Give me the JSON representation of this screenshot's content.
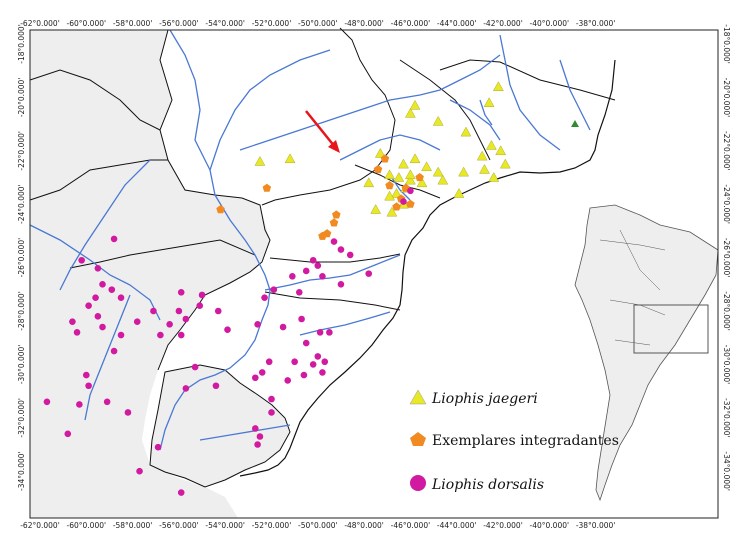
{
  "map": {
    "x_ticks": [
      "-62°0.000'",
      "-60°0.000'",
      "-58°0.000'",
      "-56°0.000'",
      "-54°0.000'",
      "-52°0.000'",
      "-50°0.000'",
      "-48°0.000'",
      "-46°0.000'",
      "-44°0.000'",
      "-42°0.000'",
      "-40°0.000'",
      "-38°0.000'"
    ],
    "y_ticks": [
      "-18°0.000'",
      "-20°0.000'",
      "-22°0.000'",
      "-24°0.000'",
      "-26°0.000'",
      "-28°0.000'",
      "-30°0.000'",
      "-32°0.000'",
      "-34°0.000'"
    ],
    "colors": {
      "land_foreign": "#eeeeee",
      "land_brazil": "#ffffff",
      "ocean": "#ffffff",
      "rivers": "#4a78d4",
      "borders": "#111111",
      "arrow": "#e8141b",
      "jaegeri": "#e8e826",
      "integradantes": "#f08a21",
      "dorsalis": "#d11aa0"
    }
  },
  "legend": {
    "items": [
      {
        "label": "Liophis jaegeri",
        "symbol": "triangle",
        "italic": true
      },
      {
        "label": "Exemplares integradantes",
        "symbol": "pentagon",
        "italic": false
      },
      {
        "label": "Liophis dorsalis",
        "symbol": "circle",
        "italic": true
      }
    ]
  },
  "points": {
    "jaegeri": [
      [
        -42.2,
        -19.6
      ],
      [
        -42.6,
        -20.2
      ],
      [
        -45.8,
        -20.3
      ],
      [
        -46.0,
        -20.6
      ],
      [
        -44.8,
        -20.9
      ],
      [
        -43.6,
        -21.3
      ],
      [
        -42.1,
        -22.0
      ],
      [
        -42.5,
        -21.8
      ],
      [
        -42.9,
        -22.2
      ],
      [
        -47.3,
        -22.1
      ],
      [
        -45.8,
        -22.3
      ],
      [
        -46.3,
        -22.5
      ],
      [
        -45.3,
        -22.6
      ],
      [
        -44.8,
        -22.8
      ],
      [
        -43.7,
        -22.8
      ],
      [
        -42.8,
        -22.7
      ],
      [
        -42.4,
        -23.0
      ],
      [
        -41.9,
        -22.5
      ],
      [
        -46.9,
        -22.9
      ],
      [
        -46.5,
        -23.0
      ],
      [
        -46.0,
        -23.1
      ],
      [
        -45.5,
        -23.2
      ],
      [
        -47.8,
        -23.2
      ],
      [
        -44.6,
        -23.1
      ],
      [
        -43.9,
        -23.6
      ],
      [
        -46.2,
        -23.4
      ],
      [
        -46.6,
        -23.6
      ],
      [
        -46.9,
        -23.7
      ],
      [
        -46.3,
        -24.0
      ],
      [
        -46.8,
        -24.3
      ],
      [
        -47.5,
        -24.2
      ],
      [
        -52.5,
        -22.4
      ],
      [
        -51.2,
        -22.3
      ],
      [
        -46.0,
        -22.9
      ]
    ],
    "integradantes": [
      [
        -47.4,
        -22.7
      ],
      [
        -47.1,
        -22.3
      ],
      [
        -46.2,
        -23.4
      ],
      [
        -46.4,
        -23.8
      ],
      [
        -46.6,
        -24.1
      ],
      [
        -45.6,
        -23.0
      ],
      [
        -46.0,
        -24.0
      ],
      [
        -49.2,
        -24.4
      ],
      [
        -49.3,
        -24.7
      ],
      [
        -49.6,
        -25.1
      ],
      [
        -49.8,
        -25.2
      ],
      [
        -52.2,
        -23.4
      ],
      [
        -54.2,
        -24.2
      ],
      [
        -46.9,
        -23.3
      ]
    ],
    "dorsalis": [
      [
        -46.0,
        -23.5
      ],
      [
        -46.3,
        -23.9
      ],
      [
        -49.3,
        -25.4
      ],
      [
        -49.0,
        -25.7
      ],
      [
        -48.6,
        -25.9
      ],
      [
        -50.2,
        -26.1
      ],
      [
        -50.5,
        -26.5
      ],
      [
        -50.0,
        -26.3
      ],
      [
        -49.8,
        -26.7
      ],
      [
        -51.1,
        -26.7
      ],
      [
        -51.9,
        -27.2
      ],
      [
        -52.3,
        -27.5
      ],
      [
        -50.8,
        -27.3
      ],
      [
        -49.0,
        -27.0
      ],
      [
        -47.8,
        -26.6
      ],
      [
        -50.7,
        -28.3
      ],
      [
        -52.6,
        -28.5
      ],
      [
        -51.5,
        -28.6
      ],
      [
        -49.9,
        -28.8
      ],
      [
        -50.5,
        -29.2
      ],
      [
        -49.5,
        -28.8
      ],
      [
        -50.0,
        -29.7
      ],
      [
        -49.7,
        -29.9
      ],
      [
        -50.2,
        -30.0
      ],
      [
        -49.8,
        -30.3
      ],
      [
        -50.6,
        -30.4
      ],
      [
        -51.0,
        -29.9
      ],
      [
        -52.1,
        -29.9
      ],
      [
        -52.4,
        -30.3
      ],
      [
        -52.7,
        -30.5
      ],
      [
        -55.3,
        -30.1
      ],
      [
        -55.7,
        -30.9
      ],
      [
        -54.4,
        -30.8
      ],
      [
        -51.3,
        -30.6
      ],
      [
        -52.0,
        -31.3
      ],
      [
        -52.0,
        -31.8
      ],
      [
        -52.5,
        -32.7
      ],
      [
        -52.7,
        -32.4
      ],
      [
        -52.6,
        -33.0
      ],
      [
        -55.9,
        -34.8
      ],
      [
        -57.7,
        -34.0
      ],
      [
        -56.9,
        -33.1
      ],
      [
        -59.1,
        -31.4
      ],
      [
        -58.2,
        -31.8
      ],
      [
        -60.3,
        -31.5
      ],
      [
        -59.9,
        -30.8
      ],
      [
        -60.8,
        -32.6
      ],
      [
        -61.7,
        -31.4
      ],
      [
        -60.0,
        -30.4
      ],
      [
        -58.8,
        -29.5
      ],
      [
        -59.3,
        -28.6
      ],
      [
        -58.5,
        -28.9
      ],
      [
        -57.8,
        -28.4
      ],
      [
        -57.1,
        -28.0
      ],
      [
        -56.4,
        -28.5
      ],
      [
        -55.7,
        -28.3
      ],
      [
        -55.1,
        -27.8
      ],
      [
        -54.3,
        -28.0
      ],
      [
        -55.9,
        -28.9
      ],
      [
        -56.8,
        -28.9
      ],
      [
        -58.5,
        -27.5
      ],
      [
        -58.9,
        -27.2
      ],
      [
        -59.6,
        -27.5
      ],
      [
        -59.9,
        -27.8
      ],
      [
        -59.5,
        -28.2
      ],
      [
        -60.4,
        -28.8
      ],
      [
        -60.2,
        -26.1
      ],
      [
        -58.8,
        -25.3
      ],
      [
        -55.9,
        -27.3
      ],
      [
        -55.0,
        -27.4
      ],
      [
        -56.0,
        -28.0
      ],
      [
        -53.9,
        -28.7
      ],
      [
        -59.3,
        -27.0
      ],
      [
        -60.6,
        -28.4
      ],
      [
        -59.5,
        -26.4
      ]
    ]
  }
}
